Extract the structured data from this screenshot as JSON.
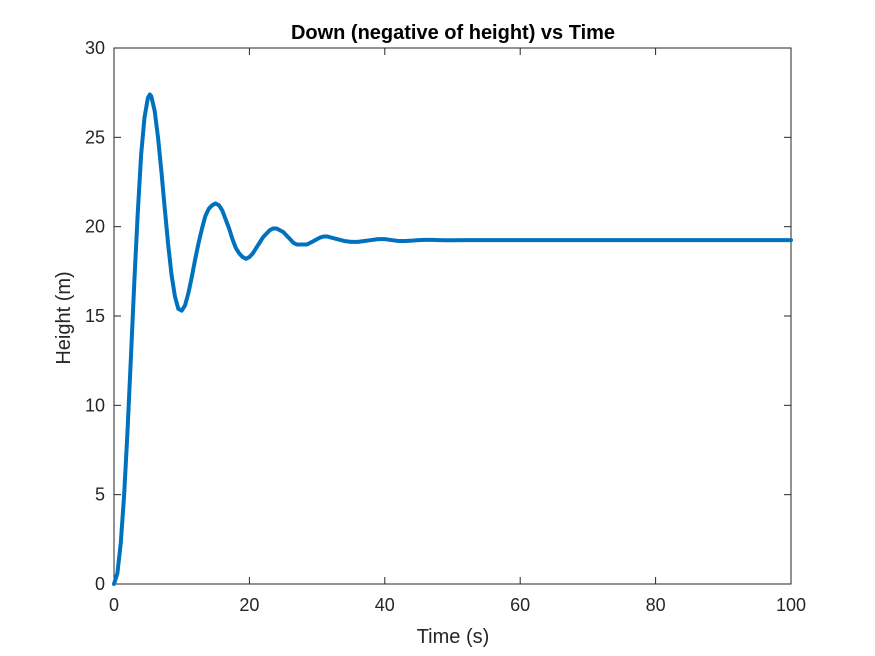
{
  "chart_data": {
    "type": "line",
    "title": "Down (negative of height) vs Time",
    "xlabel": "Time (s)",
    "ylabel": "Height (m)",
    "xlim": [
      0,
      100
    ],
    "ylim": [
      0,
      30
    ],
    "xticks": [
      "0",
      "20",
      "40",
      "60",
      "80",
      "100"
    ],
    "yticks": [
      "0",
      "5",
      "10",
      "15",
      "20",
      "25",
      "30"
    ],
    "grid": false,
    "legend": "none",
    "box": true,
    "line_color": "#0072BD",
    "axis_color": "#262626",
    "series": [
      {
        "x": [
          0,
          0.5,
          1,
          1.5,
          2,
          2.5,
          3,
          3.5,
          4,
          4.5,
          5,
          5.3,
          5.5,
          6,
          6.5,
          7,
          7.5,
          8,
          8.5,
          9,
          9.5,
          10,
          10.5,
          11,
          11.5,
          12,
          12.5,
          13,
          13.5,
          14,
          14.5,
          15,
          15.5,
          16,
          16.5,
          17,
          17.5,
          18,
          18.5,
          19,
          19.5,
          20,
          20.5,
          21,
          21.5,
          22,
          22.5,
          23,
          23.5,
          24,
          24.5,
          25,
          25.5,
          26,
          26.5,
          27,
          27.5,
          28,
          28.5,
          29,
          29.5,
          30,
          30.5,
          31,
          31.5,
          32,
          33,
          34,
          35,
          36,
          37,
          38,
          39,
          40,
          41,
          42,
          43,
          44,
          45,
          46,
          47,
          48,
          49,
          50,
          52,
          54,
          56,
          58,
          60,
          65,
          70,
          75,
          80,
          85,
          90,
          95,
          100
        ],
        "y": [
          0,
          0.6,
          2.3,
          5.0,
          8.6,
          12.7,
          16.9,
          20.7,
          24.0,
          26.1,
          27.2,
          27.4,
          27.3,
          26.5,
          25.0,
          23.1,
          21.0,
          19.0,
          17.3,
          16.1,
          15.4,
          15.3,
          15.6,
          16.3,
          17.2,
          18.2,
          19.1,
          19.9,
          20.6,
          21.0,
          21.2,
          21.3,
          21.2,
          20.9,
          20.4,
          19.9,
          19.3,
          18.8,
          18.5,
          18.3,
          18.2,
          18.3,
          18.5,
          18.8,
          19.1,
          19.4,
          19.6,
          19.8,
          19.9,
          19.9,
          19.8,
          19.7,
          19.5,
          19.3,
          19.1,
          19.0,
          19.0,
          19.0,
          19.0,
          19.1,
          19.2,
          19.3,
          19.4,
          19.45,
          19.45,
          19.4,
          19.3,
          19.2,
          19.15,
          19.15,
          19.2,
          19.25,
          19.3,
          19.3,
          19.25,
          19.2,
          19.2,
          19.22,
          19.25,
          19.26,
          19.26,
          19.25,
          19.24,
          19.24,
          19.25,
          19.25,
          19.25,
          19.25,
          19.25,
          19.25,
          19.25,
          19.25,
          19.25,
          19.25,
          19.25,
          19.25,
          19.25
        ]
      }
    ]
  }
}
